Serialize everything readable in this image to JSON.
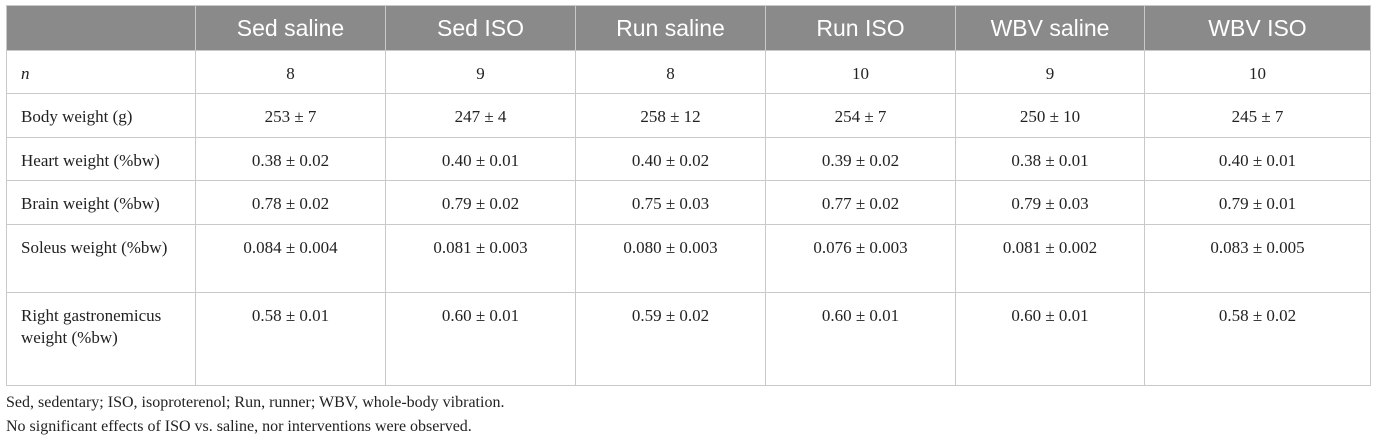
{
  "table": {
    "headers": [
      "",
      "Sed saline",
      "Sed ISO",
      "Run saline",
      "Run ISO",
      "WBV saline",
      "WBV ISO"
    ],
    "rows": [
      {
        "label": "n",
        "values": [
          "8",
          "9",
          "8",
          "10",
          "9",
          "10"
        ]
      },
      {
        "label": "Body weight (g)",
        "values": [
          "253 ± 7",
          "247 ± 4",
          "258 ± 12",
          "254 ± 7",
          "250 ± 10",
          "245 ± 7"
        ]
      },
      {
        "label": "Heart weight (%bw)",
        "values": [
          "0.38 ± 0.02",
          "0.40 ± 0.01",
          "0.40 ± 0.02",
          "0.39 ± 0.02",
          "0.38 ± 0.01",
          "0.40 ± 0.01"
        ]
      },
      {
        "label": "Brain weight (%bw)",
        "values": [
          "0.78 ± 0.02",
          "0.79 ± 0.02",
          "0.75 ± 0.03",
          "0.77 ± 0.02",
          "0.79 ± 0.03",
          "0.79 ± 0.01"
        ]
      },
      {
        "label": "Soleus weight (%bw)",
        "values": [
          "0.084 ± 0.004",
          "0.081 ± 0.003",
          "0.080 ± 0.003",
          "0.076 ± 0.003",
          "0.081 ± 0.002",
          "0.083 ± 0.005"
        ]
      },
      {
        "label": "Right gastronemicus weight (%bw)",
        "values": [
          "0.58 ± 0.01",
          "0.60 ± 0.01",
          "0.59 ± 0.02",
          "0.60 ± 0.01",
          "0.60 ± 0.01",
          "0.58 ± 0.02"
        ]
      }
    ]
  },
  "footnotes": [
    "Sed, sedentary; ISO, isoproterenol; Run, runner; WBV, whole-body vibration.",
    "No significant effects of ISO vs. saline, nor interventions were observed."
  ]
}
